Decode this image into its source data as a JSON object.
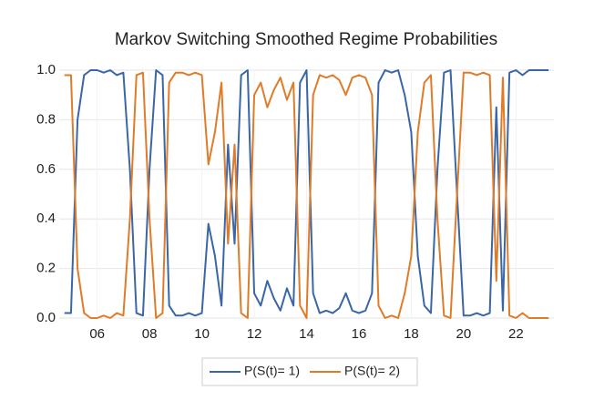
{
  "chart_data": {
    "type": "line",
    "title": "Markov Switching Smoothed Regime Probabilities",
    "x": [
      2004.75,
      2005,
      2005.25,
      2005.5,
      2005.75,
      2006,
      2006.25,
      2006.5,
      2006.75,
      2007,
      2007.25,
      2007.5,
      2007.75,
      2008,
      2008.25,
      2008.5,
      2008.75,
      2009,
      2009.25,
      2009.5,
      2009.75,
      2010,
      2010.25,
      2010.5,
      2010.75,
      2011,
      2011.25,
      2011.5,
      2011.75,
      2012,
      2012.25,
      2012.5,
      2012.75,
      2013,
      2013.25,
      2013.5,
      2013.75,
      2014,
      2014.25,
      2014.5,
      2014.75,
      2015,
      2015.25,
      2015.5,
      2015.75,
      2016,
      2016.25,
      2016.5,
      2016.75,
      2017,
      2017.25,
      2017.5,
      2017.75,
      2018,
      2018.25,
      2018.5,
      2018.75,
      2019,
      2019.25,
      2019.5,
      2019.75,
      2020,
      2020.25,
      2020.5,
      2020.75,
      2021,
      2021.25,
      2021.5,
      2021.75,
      2022,
      2022.25,
      2022.5,
      2022.75,
      2023,
      2023.25
    ],
    "series": [
      {
        "name": "P(S(t)= 1)",
        "color": "#3a66a7",
        "values": [
          0.02,
          0.02,
          0.8,
          0.98,
          1,
          1,
          0.99,
          1,
          0.98,
          0.99,
          0.6,
          0.02,
          0.01,
          0.6,
          1,
          0.98,
          0.05,
          0.01,
          0.01,
          0.02,
          0.01,
          0.02,
          0.38,
          0.25,
          0.05,
          0.7,
          0.3,
          0.98,
          1,
          0.1,
          0.05,
          0.15,
          0.08,
          0.03,
          0.12,
          0.05,
          0.95,
          1,
          0.1,
          0.02,
          0.03,
          0.02,
          0.04,
          0.1,
          0.03,
          0.02,
          0.03,
          0.1,
          0.95,
          1,
          0.99,
          1,
          0.9,
          0.75,
          0.25,
          0.05,
          0.02,
          0.6,
          0.99,
          1,
          0.5,
          0.01,
          0.01,
          0.02,
          0.01,
          0.02,
          0.85,
          0.03,
          0.99,
          1,
          0.98,
          1,
          1,
          1,
          1
        ]
      },
      {
        "name": "P(S(t)= 2)",
        "color": "#e07b28",
        "values": [
          0.98,
          0.98,
          0.2,
          0.02,
          0,
          0,
          0.01,
          0,
          0.02,
          0.01,
          0.4,
          0.98,
          0.99,
          0.4,
          0,
          0.02,
          0.95,
          0.99,
          0.99,
          0.98,
          0.99,
          0.98,
          0.62,
          0.75,
          0.95,
          0.3,
          0.7,
          0.02,
          0,
          0.9,
          0.95,
          0.85,
          0.92,
          0.97,
          0.88,
          0.95,
          0.05,
          0,
          0.9,
          0.98,
          0.97,
          0.98,
          0.96,
          0.9,
          0.97,
          0.98,
          0.97,
          0.9,
          0.05,
          0,
          0.01,
          0,
          0.1,
          0.25,
          0.75,
          0.95,
          0.98,
          0.4,
          0.01,
          0,
          0.5,
          0.99,
          0.99,
          0.98,
          0.99,
          0.98,
          0.15,
          0.97,
          0.01,
          0,
          0.02,
          0,
          0,
          0,
          0
        ]
      }
    ],
    "xlim": [
      2004.55,
      2023.45
    ],
    "xticks": [
      {
        "value": 2006,
        "label": "06"
      },
      {
        "value": 2008,
        "label": "08"
      },
      {
        "value": 2010,
        "label": "10"
      },
      {
        "value": 2012,
        "label": "12"
      },
      {
        "value": 2014,
        "label": "14"
      },
      {
        "value": 2016,
        "label": "16"
      },
      {
        "value": 2018,
        "label": "18"
      },
      {
        "value": 2020,
        "label": "20"
      },
      {
        "value": 2022,
        "label": "22"
      }
    ],
    "ylim": [
      0,
      1
    ],
    "yticks": [
      {
        "value": 0,
        "label": "0.0"
      },
      0.2,
      0.4,
      0.6,
      0.8,
      {
        "value": 1,
        "label": "1.0"
      }
    ],
    "grid": true,
    "legend": "bottom"
  }
}
